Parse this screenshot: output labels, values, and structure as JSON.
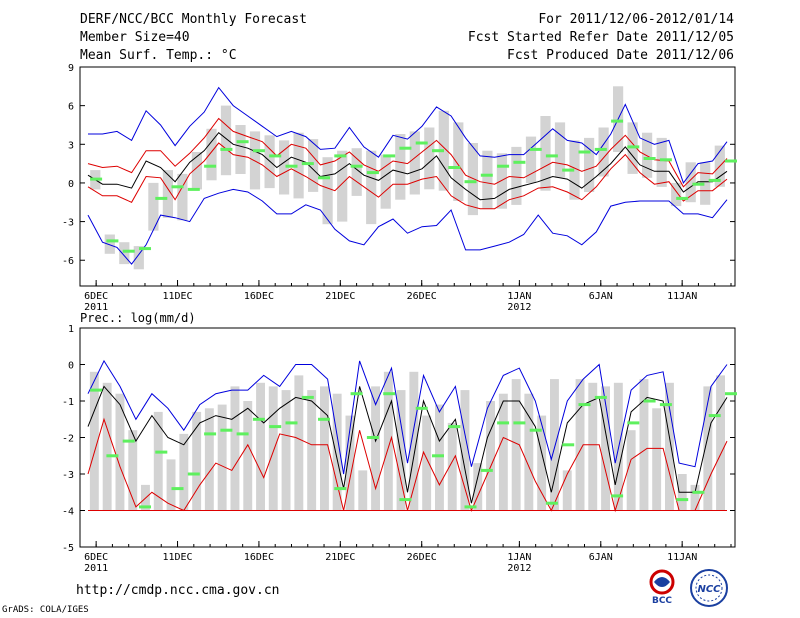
{
  "header": {
    "title": "DERF/NCC/BCC Monthly Forecast",
    "member": "Member Size=40",
    "variable": "Mean Surf. Temp.: °C",
    "period": "For 2011/12/06-2012/01/14",
    "started": "Fcst Started Refer Date 2011/12/05",
    "produced": "Fcst Produced Date 2011/12/06"
  },
  "footer": {
    "url": "http://cmdp.ncc.cma.gov.cn",
    "credit": "GrADS: COLA/IGES",
    "logo_bcc": "BCC",
    "logo_ncc": "NCC"
  },
  "colors": {
    "bar": "#d3d3d3",
    "green": "#5ef05e",
    "blue": "#0000dd",
    "red": "#dd0000",
    "black": "#000000"
  },
  "chart_data": [
    {
      "type": "line",
      "title": "Mean Surf. Temp.: °C",
      "ylim": [
        -8,
        9
      ],
      "yticks": [
        9,
        6,
        3,
        0,
        -3,
        -6
      ],
      "x_days": 40,
      "xtick_labels": [
        {
          "day": 1,
          "label": "6DEC",
          "sub": "2011"
        },
        {
          "day": 6,
          "label": "11DEC",
          "sub": ""
        },
        {
          "day": 11,
          "label": "16DEC",
          "sub": ""
        },
        {
          "day": 16,
          "label": "21DEC",
          "sub": ""
        },
        {
          "day": 21,
          "label": "26DEC",
          "sub": ""
        },
        {
          "day": 27,
          "label": "1JAN",
          "sub": "2012"
        },
        {
          "day": 32,
          "label": "6JAN",
          "sub": ""
        },
        {
          "day": 37,
          "label": "11JAN",
          "sub": ""
        }
      ],
      "series": [
        {
          "name": "ensemble mean",
          "color": "black",
          "values": [
            0.6,
            -0.1,
            -0.1,
            -0.4,
            1.7,
            1.2,
            0.1,
            1.6,
            2.5,
            3.9,
            3.0,
            2.7,
            2.2,
            1.2,
            2.0,
            1.6,
            0.5,
            0.7,
            1.5,
            0.6,
            0.2,
            1.0,
            0.7,
            1.1,
            2.1,
            0.4,
            -0.5,
            -1.3,
            -1.2,
            -0.5,
            -0.2,
            0.1,
            0.5,
            0.3,
            -0.4,
            0.5,
            1.5,
            2.8,
            1.4,
            0.9,
            0.9,
            -0.7,
            0.1,
            0.1,
            0.9
          ]
        },
        {
          "name": "upper",
          "color": "blue",
          "values": [
            3.8,
            3.8,
            4.0,
            3.3,
            5.6,
            4.5,
            2.9,
            4.4,
            5.5,
            7.4,
            6.0,
            5.2,
            4.4,
            3.6,
            4.0,
            3.6,
            2.6,
            2.7,
            4.3,
            2.8,
            2.0,
            3.7,
            3.4,
            4.4,
            5.9,
            5.2,
            3.5,
            2.1,
            2.0,
            2.2,
            2.2,
            3.2,
            4.2,
            3.3,
            3.1,
            2.2,
            3.8,
            6.1,
            3.5,
            3.0,
            3.3,
            0.0,
            1.5,
            1.7,
            3.2
          ]
        },
        {
          "name": "upper-mid",
          "color": "red",
          "values": [
            1.5,
            1.2,
            1.3,
            0.8,
            2.5,
            2.5,
            1.3,
            2.3,
            3.5,
            5.0,
            4.0,
            3.6,
            3.2,
            2.1,
            3.0,
            2.7,
            1.4,
            1.7,
            2.4,
            1.4,
            0.9,
            1.7,
            1.5,
            2.4,
            3.3,
            2.2,
            0.6,
            0.1,
            -0.1,
            0.5,
            0.4,
            1.0,
            1.6,
            1.4,
            0.9,
            1.3,
            2.6,
            3.7,
            2.4,
            1.8,
            1.7,
            -0.3,
            0.8,
            0.7,
            1.9
          ]
        },
        {
          "name": "lower-mid",
          "color": "red",
          "values": [
            -0.3,
            -1.0,
            -1.0,
            -1.5,
            0.5,
            0.4,
            -1.3,
            0.7,
            1.7,
            3.1,
            2.2,
            2.0,
            1.4,
            0.5,
            1.1,
            0.5,
            -0.2,
            -0.6,
            0.5,
            -0.3,
            -1.1,
            -0.1,
            -0.1,
            0.3,
            0.5,
            -1.0,
            -1.7,
            -2.0,
            -2.0,
            -1.3,
            -1.0,
            -0.4,
            -0.3,
            -0.7,
            -1.3,
            -0.3,
            1.1,
            2.2,
            0.8,
            -0.1,
            0.1,
            -1.4,
            -0.6,
            -0.6,
            0.3
          ]
        },
        {
          "name": "lower",
          "color": "blue",
          "values": [
            -2.5,
            -4.6,
            -5.0,
            -6.3,
            -4.8,
            -2.5,
            -2.7,
            -3.0,
            -1.2,
            -0.8,
            -0.5,
            -0.7,
            -1.4,
            -2.4,
            -2.4,
            -1.7,
            -2.1,
            -3.6,
            -4.5,
            -4.8,
            -3.4,
            -2.8,
            -3.9,
            -3.4,
            -3.3,
            -2.1,
            -5.2,
            -5.2,
            -4.9,
            -4.6,
            -4.0,
            -2.5,
            -3.9,
            -4.1,
            -4.8,
            -3.8,
            -1.8,
            -1.5,
            -1.4,
            -1.4,
            -1.4,
            -2.4,
            -2.4,
            -2.7,
            -1.3
          ]
        }
      ],
      "observed": [
        0.3,
        -4.5,
        -5.3,
        -5.1,
        -1.2,
        -0.3,
        -0.5,
        1.3,
        2.6,
        3.2,
        2.5,
        2.1,
        1.3,
        1.5,
        0.4,
        2.1,
        1.3,
        0.8,
        2.1,
        2.7,
        3.1,
        2.5,
        1.2,
        0.1,
        0.6,
        1.3,
        1.6,
        2.6,
        2.1,
        1.0,
        2.4,
        2.6,
        4.8,
        2.8,
        1.9,
        1.8,
        -1.2,
        -0.1,
        0.2,
        1.7
      ],
      "bars": [
        [
          -0.5,
          1.0
        ],
        [
          -5.5,
          -4.0
        ],
        [
          -6.3,
          -4.6
        ],
        [
          -6.7,
          -4.9
        ],
        [
          -3.7,
          0.0
        ],
        [
          -2.7,
          1.0
        ],
        [
          -2.9,
          0.7
        ],
        [
          -0.5,
          2.4
        ],
        [
          0.2,
          4.2
        ],
        [
          0.6,
          6.0
        ],
        [
          0.7,
          4.5
        ],
        [
          -0.5,
          4.0
        ],
        [
          -0.4,
          3.7
        ],
        [
          -0.9,
          3.3
        ],
        [
          -1.2,
          3.9
        ],
        [
          -0.7,
          3.4
        ],
        [
          -3.2,
          2.0
        ],
        [
          -3.0,
          2.5
        ],
        [
          -1.0,
          2.7
        ],
        [
          -3.2,
          2.5
        ],
        [
          -2.0,
          2.2
        ],
        [
          -1.3,
          3.8
        ],
        [
          -0.9,
          4.0
        ],
        [
          -0.5,
          4.3
        ],
        [
          -0.6,
          5.6
        ],
        [
          -1.4,
          4.7
        ],
        [
          -2.5,
          3.1
        ],
        [
          -2.0,
          2.5
        ],
        [
          -2.0,
          2.3
        ],
        [
          -1.7,
          2.8
        ],
        [
          0.0,
          3.6
        ],
        [
          -0.6,
          5.2
        ],
        [
          0.4,
          4.7
        ],
        [
          -1.3,
          3.3
        ],
        [
          -0.7,
          3.5
        ],
        [
          0.5,
          4.3
        ],
        [
          2.4,
          7.5
        ],
        [
          0.7,
          4.7
        ],
        [
          0.4,
          3.9
        ],
        [
          -0.3,
          3.5
        ],
        [
          -1.8,
          0.0
        ],
        [
          -1.5,
          1.6
        ],
        [
          -1.7,
          1.6
        ],
        [
          -0.3,
          2.9
        ]
      ]
    },
    {
      "type": "line",
      "title": "Prec.: log(mm/d)",
      "ylim": [
        -5,
        1
      ],
      "yticks": [
        1,
        0,
        -1,
        -2,
        -3,
        -4,
        -5
      ],
      "x_days": 40,
      "xtick_labels": [
        {
          "day": 1,
          "label": "6DEC",
          "sub": "2011"
        },
        {
          "day": 6,
          "label": "11DEC",
          "sub": ""
        },
        {
          "day": 11,
          "label": "16DEC",
          "sub": ""
        },
        {
          "day": 16,
          "label": "21DEC",
          "sub": ""
        },
        {
          "day": 21,
          "label": "26DEC",
          "sub": ""
        },
        {
          "day": 27,
          "label": "1JAN",
          "sub": "2012"
        },
        {
          "day": 32,
          "label": "6JAN",
          "sub": ""
        },
        {
          "day": 37,
          "label": "11JAN",
          "sub": ""
        }
      ],
      "series": [
        {
          "name": "ensemble mean",
          "color": "black",
          "values": [
            -1.7,
            -0.6,
            -1.1,
            -2.1,
            -1.4,
            -2.0,
            -2.2,
            -1.6,
            -1.4,
            -1.5,
            -1.2,
            -1.6,
            -1.2,
            -0.9,
            -1.0,
            -1.4,
            -3.4,
            -0.6,
            -2.1,
            -1.0,
            -3.5,
            -1.0,
            -2.1,
            -1.5,
            -3.8,
            -2.0,
            -1.0,
            -1.0,
            -1.7,
            -3.5,
            -1.6,
            -1.1,
            -0.9,
            -3.3,
            -1.3,
            -0.9,
            -1.0,
            -3.5,
            -3.5,
            -1.6,
            -0.9
          ]
        },
        {
          "name": "upper",
          "color": "blue",
          "values": [
            -0.8,
            0.1,
            -0.6,
            -1.5,
            -0.8,
            -1.2,
            -1.8,
            -1.1,
            -0.8,
            -0.7,
            -0.7,
            -0.3,
            -0.6,
            0.0,
            0.0,
            -0.4,
            -3.0,
            0.1,
            -1.1,
            -0.1,
            -2.7,
            -0.3,
            -1.3,
            -0.6,
            -2.8,
            -1.2,
            -0.3,
            -0.1,
            -1.0,
            -2.6,
            -1.0,
            -0.4,
            0.0,
            -2.7,
            -0.7,
            -0.3,
            -0.2,
            -2.7,
            -2.8,
            -0.6,
            0.0
          ]
        },
        {
          "name": "lower",
          "color": "red",
          "values": [
            -3.0,
            -1.5,
            -2.8,
            -3.9,
            -3.5,
            -3.8,
            -4.0,
            -3.3,
            -2.7,
            -2.9,
            -2.2,
            -3.1,
            -1.9,
            -2.0,
            -2.2,
            -2.2,
            -4.0,
            -1.8,
            -3.4,
            -2.0,
            -4.0,
            -2.4,
            -3.3,
            -2.5,
            -4.0,
            -3.0,
            -2.0,
            -2.2,
            -3.2,
            -4.0,
            -3.0,
            -2.2,
            -2.2,
            -4.0,
            -2.6,
            -2.3,
            -2.3,
            -4.0,
            -4.0,
            -3.0,
            -2.1
          ]
        }
      ],
      "floor_line": -4,
      "observed": [
        -0.7,
        -2.5,
        -2.1,
        -3.9,
        -2.4,
        -3.4,
        -3.0,
        -1.9,
        -1.8,
        -1.9,
        -1.5,
        -1.7,
        -1.6,
        -0.9,
        -1.5,
        -3.4,
        -0.8,
        -2.0,
        -0.8,
        -3.7,
        -1.2,
        -2.5,
        -1.7,
        -3.9,
        -2.9,
        -1.6,
        -1.6,
        -1.8,
        -3.8,
        -2.2,
        -1.1,
        -0.9,
        -3.6,
        -1.6,
        -1.0,
        -1.1,
        -3.7,
        -3.5,
        -1.4,
        -0.8
      ],
      "bars": [
        [
          -4.0,
          -0.2
        ],
        [
          -4.0,
          -0.5
        ],
        [
          -4.0,
          -0.8
        ],
        [
          -4.0,
          -1.8
        ],
        [
          -4.0,
          -3.3
        ],
        [
          -4.0,
          -1.3
        ],
        [
          -4.0,
          -2.6
        ],
        [
          -4.0,
          -1.9
        ],
        [
          -4.0,
          -1.3
        ],
        [
          -4.0,
          -1.2
        ],
        [
          -4.0,
          -1.1
        ],
        [
          -4.0,
          -0.6
        ],
        [
          -4.0,
          -1.0
        ],
        [
          -4.0,
          -0.5
        ],
        [
          -4.0,
          -0.6
        ],
        [
          -4.0,
          -0.7
        ],
        [
          -4.0,
          -0.3
        ],
        [
          -4.0,
          -0.7
        ],
        [
          -4.0,
          -0.6
        ],
        [
          -4.0,
          -0.8
        ],
        [
          -4.0,
          -1.4
        ],
        [
          -4.0,
          -2.9
        ],
        [
          -4.0,
          -0.6
        ],
        [
          -4.0,
          -0.2
        ],
        [
          -4.0,
          -0.7
        ],
        [
          -4.0,
          -0.2
        ],
        [
          -4.0,
          -1.4
        ],
        [
          -4.0,
          -1.1
        ],
        [
          -4.0,
          -1.6
        ],
        [
          -4.0,
          -0.7
        ],
        [
          -4.0,
          -2.7
        ],
        [
          -4.0,
          -1.0
        ],
        [
          -4.0,
          -0.8
        ],
        [
          -4.0,
          -0.4
        ],
        [
          -4.0,
          -0.8
        ],
        [
          -4.0,
          -1.4
        ],
        [
          -4.0,
          -0.4
        ],
        [
          -4.0,
          -2.9
        ],
        [
          -4.0,
          -0.4
        ],
        [
          -4.0,
          -0.5
        ],
        [
          -4.0,
          -0.6
        ],
        [
          -4.0,
          -0.5
        ],
        [
          -4.0,
          -1.8
        ],
        [
          -4.0,
          -0.4
        ],
        [
          -4.0,
          -1.2
        ],
        [
          -4.0,
          -0.5
        ],
        [
          -4.0,
          -3.0
        ],
        [
          -4.0,
          -3.3
        ],
        [
          -4.0,
          -0.6
        ],
        [
          -4.0,
          -0.3
        ]
      ]
    }
  ]
}
